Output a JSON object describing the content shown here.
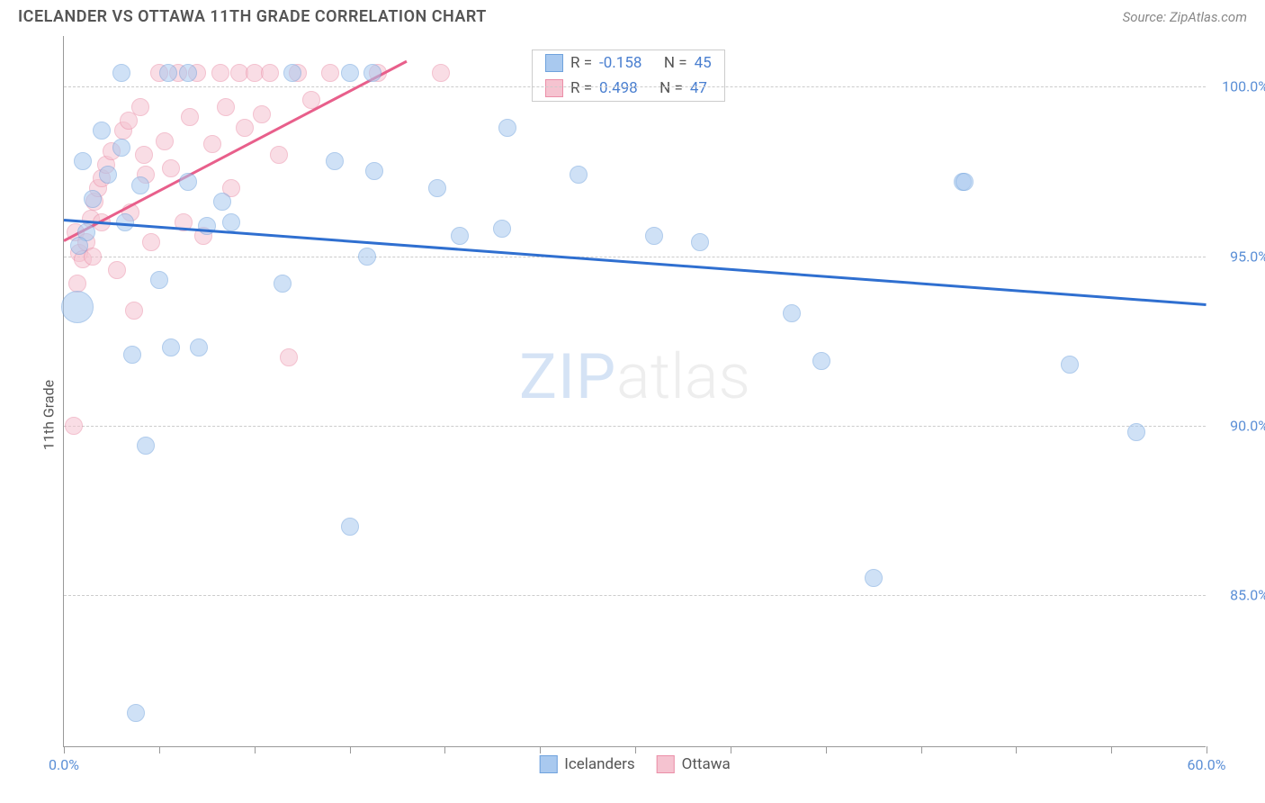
{
  "header": {
    "title": "ICELANDER VS OTTAWA 11TH GRADE CORRELATION CHART",
    "source": "Source: ZipAtlas.com"
  },
  "y_axis": {
    "label": "11th Grade"
  },
  "watermark": {
    "part1": "ZIP",
    "part2": "atlas"
  },
  "chart": {
    "type": "scatter",
    "xlim": [
      0,
      60
    ],
    "ylim": [
      80.5,
      101.5
    ],
    "x_ticks": [
      0,
      5,
      10,
      15,
      20,
      25,
      30,
      35,
      40,
      45,
      50,
      55,
      60
    ],
    "x_tick_labels": {
      "0": "0.0%",
      "60": "60.0%"
    },
    "y_ticks": [
      85,
      90,
      95,
      100
    ],
    "y_tick_labels": {
      "85": "85.0%",
      "90": "90.0%",
      "95": "95.0%",
      "100": "100.0%"
    },
    "grid_color": "#cccccc",
    "background_color": "#ffffff",
    "axis_color": "#999999",
    "tick_label_color": "#5b8fd6",
    "marker_radius": 10,
    "marker_opacity": 0.55,
    "series": {
      "icelanders": {
        "label": "Icelanders",
        "fill": "#a9c9ef",
        "stroke": "#6fa2dd",
        "trend_color": "#2f6fd0",
        "trend_width": 3,
        "trend": {
          "x1": 0,
          "y1": 96.1,
          "x2": 60,
          "y2": 93.6
        },
        "r_label": "R =",
        "r_value": "-0.158",
        "n_label": "N =",
        "n_value": "45",
        "points": [
          {
            "x": 0.7,
            "y": 93.5,
            "r": 18
          },
          {
            "x": 4.3,
            "y": 89.4
          },
          {
            "x": 1.2,
            "y": 95.7
          },
          {
            "x": 3.0,
            "y": 100.4
          },
          {
            "x": 5.5,
            "y": 100.4
          },
          {
            "x": 6.5,
            "y": 100.4
          },
          {
            "x": 3.0,
            "y": 98.2
          },
          {
            "x": 2.3,
            "y": 97.4
          },
          {
            "x": 3.2,
            "y": 96.0
          },
          {
            "x": 7.5,
            "y": 95.9
          },
          {
            "x": 8.8,
            "y": 96.0
          },
          {
            "x": 6.5,
            "y": 97.2
          },
          {
            "x": 5.0,
            "y": 94.3
          },
          {
            "x": 5.6,
            "y": 92.3
          },
          {
            "x": 7.1,
            "y": 92.3
          },
          {
            "x": 8.3,
            "y": 96.6
          },
          {
            "x": 11.5,
            "y": 94.2
          },
          {
            "x": 12.0,
            "y": 100.4
          },
          {
            "x": 15.0,
            "y": 100.4
          },
          {
            "x": 16.2,
            "y": 100.4
          },
          {
            "x": 14.2,
            "y": 97.8
          },
          {
            "x": 16.3,
            "y": 97.5
          },
          {
            "x": 15.9,
            "y": 95.0
          },
          {
            "x": 15.0,
            "y": 87.0
          },
          {
            "x": 19.6,
            "y": 97.0
          },
          {
            "x": 20.8,
            "y": 95.6
          },
          {
            "x": 23.3,
            "y": 98.8
          },
          {
            "x": 23.0,
            "y": 95.8
          },
          {
            "x": 27.0,
            "y": 97.4
          },
          {
            "x": 31.0,
            "y": 95.6
          },
          {
            "x": 33.4,
            "y": 95.4
          },
          {
            "x": 38.2,
            "y": 93.3
          },
          {
            "x": 39.8,
            "y": 91.9
          },
          {
            "x": 42.5,
            "y": 85.5
          },
          {
            "x": 47.2,
            "y": 97.2
          },
          {
            "x": 47.3,
            "y": 97.2
          },
          {
            "x": 52.8,
            "y": 91.8
          },
          {
            "x": 56.3,
            "y": 89.8
          },
          {
            "x": 3.8,
            "y": 81.5
          },
          {
            "x": 3.6,
            "y": 92.1
          },
          {
            "x": 1.5,
            "y": 96.7
          },
          {
            "x": 1.0,
            "y": 97.8
          },
          {
            "x": 2.0,
            "y": 98.7
          },
          {
            "x": 0.8,
            "y": 95.3
          },
          {
            "x": 4.0,
            "y": 97.1
          }
        ]
      },
      "ottawa": {
        "label": "Ottawa",
        "fill": "#f5c3d0",
        "stroke": "#eb8fa8",
        "trend_color": "#e85f8b",
        "trend_width": 3,
        "trend": {
          "x1": 0,
          "y1": 95.5,
          "x2": 18,
          "y2": 100.8
        },
        "r_label": "R =",
        "r_value": "0.498",
        "n_label": "N =",
        "n_value": "47",
        "points": [
          {
            "x": 0.6,
            "y": 95.7
          },
          {
            "x": 0.8,
            "y": 95.1
          },
          {
            "x": 1.0,
            "y": 94.9
          },
          {
            "x": 1.2,
            "y": 95.4
          },
          {
            "x": 1.4,
            "y": 96.1
          },
          {
            "x": 1.6,
            "y": 96.6
          },
          {
            "x": 1.8,
            "y": 97.0
          },
          {
            "x": 2.0,
            "y": 97.3
          },
          {
            "x": 2.2,
            "y": 97.7
          },
          {
            "x": 2.5,
            "y": 98.1
          },
          {
            "x": 2.8,
            "y": 94.6
          },
          {
            "x": 3.1,
            "y": 98.7
          },
          {
            "x": 3.4,
            "y": 99.0
          },
          {
            "x": 3.7,
            "y": 93.4
          },
          {
            "x": 4.0,
            "y": 99.4
          },
          {
            "x": 4.3,
            "y": 97.4
          },
          {
            "x": 4.6,
            "y": 95.4
          },
          {
            "x": 5.0,
            "y": 100.4
          },
          {
            "x": 5.3,
            "y": 98.4
          },
          {
            "x": 5.6,
            "y": 97.6
          },
          {
            "x": 6.0,
            "y": 100.4
          },
          {
            "x": 6.3,
            "y": 96.0
          },
          {
            "x": 6.6,
            "y": 99.1
          },
          {
            "x": 7.0,
            "y": 100.4
          },
          {
            "x": 7.3,
            "y": 95.6
          },
          {
            "x": 7.8,
            "y": 98.3
          },
          {
            "x": 8.2,
            "y": 100.4
          },
          {
            "x": 8.5,
            "y": 99.4
          },
          {
            "x": 8.8,
            "y": 97.0
          },
          {
            "x": 9.2,
            "y": 100.4
          },
          {
            "x": 9.5,
            "y": 98.8
          },
          {
            "x": 10.0,
            "y": 100.4
          },
          {
            "x": 10.4,
            "y": 99.2
          },
          {
            "x": 10.8,
            "y": 100.4
          },
          {
            "x": 11.3,
            "y": 98.0
          },
          {
            "x": 11.8,
            "y": 92.0
          },
          {
            "x": 12.3,
            "y": 100.4
          },
          {
            "x": 13.0,
            "y": 99.6
          },
          {
            "x": 14.0,
            "y": 100.4
          },
          {
            "x": 16.5,
            "y": 100.4
          },
          {
            "x": 19.8,
            "y": 100.4
          },
          {
            "x": 0.5,
            "y": 90.0
          },
          {
            "x": 0.7,
            "y": 94.2
          },
          {
            "x": 1.5,
            "y": 95.0
          },
          {
            "x": 2.0,
            "y": 96.0
          },
          {
            "x": 3.5,
            "y": 96.3
          },
          {
            "x": 4.2,
            "y": 98.0
          }
        ]
      }
    },
    "stats_box": {
      "border_color": "#cccccc"
    },
    "bottom_legend": [
      {
        "key": "icelanders"
      },
      {
        "key": "ottawa"
      }
    ]
  }
}
